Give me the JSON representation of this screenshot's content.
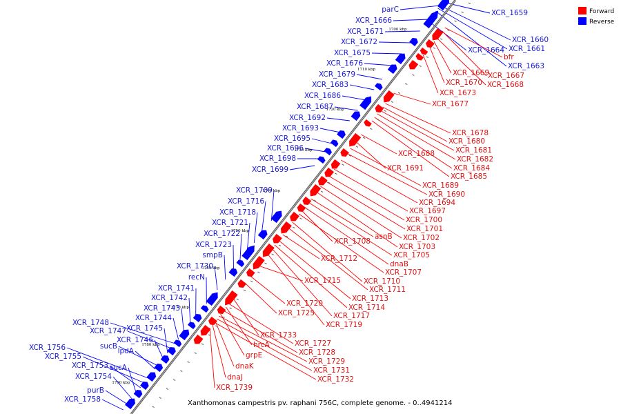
{
  "caption": "Xanthomonas campestris pv. raphani 756C, complete genome. - 0..4941214",
  "legend": {
    "items": [
      {
        "label": "Forward",
        "color": "#ff0000"
      },
      {
        "label": "Reverse",
        "color": "#0000ff"
      }
    ]
  },
  "colors": {
    "forward": "#ff0000",
    "reverse": "#0000ff",
    "backbone": "#555555"
  },
  "ticks": [
    "1700 kbp",
    "1710 kbp",
    "1720 kbp",
    "1730 kbp",
    "1740 kbp",
    "1750 kbp",
    "1760 kbp",
    "1770 kbp",
    "1780 kbp",
    "1790 kbp"
  ],
  "reverse_labels": [
    "XCR_1659",
    "parC",
    "XCR_1666",
    "XCR_1671",
    "XCR_1672",
    "XCR_1675",
    "XCR_1676",
    "XCR_1679",
    "XCR_1683",
    "XCR_1686",
    "XCR_1687",
    "XCR_1692",
    "XCR_1693",
    "XCR_1695",
    "XCR_1696",
    "XCR_1698",
    "XCR_1699",
    "XCR_1709",
    "XCR_1716",
    "XCR_1718",
    "XCR_1721",
    "XCR_1722",
    "XCR_1723",
    "smpB",
    "XCR_1730",
    "recN",
    "XCR_1741",
    "XCR_1742",
    "XCR_1743",
    "XCR_1744",
    "XCR_1748",
    "XCR_1747",
    "XCR_1745",
    "XCR_1746",
    "sucB",
    "lpdA",
    "XCR_1756",
    "XCR_1755",
    "XCR_1753",
    "sucA",
    "XCR_1754",
    "purB",
    "XCR_1758",
    "XCR_1660",
    "XCR_1661",
    "XCR_1664",
    "XCR_1663"
  ],
  "forward_labels": [
    "bfr",
    "XCR_1667",
    "XCR_1669",
    "XCR_1670",
    "XCR_1668",
    "XCR_1673",
    "XCR_1677",
    "XCR_1678",
    "XCR_1680",
    "XCR_1681",
    "XCR_1682",
    "XCR_1684",
    "XCR_1685",
    "XCR_1688",
    "XCR_1691",
    "XCR_1689",
    "XCR_1690",
    "XCR_1694",
    "XCR_1697",
    "XCR_1700",
    "XCR_1701",
    "XCR_1702",
    "XCR_1703",
    "asnB",
    "XCR_1708",
    "XCR_1705",
    "dnaB",
    "XCR_1707",
    "XCR_1712",
    "XCR_1710",
    "XCR_1711",
    "XCR_1715",
    "XCR_1713",
    "XCR_1714",
    "XCR_1720",
    "XCR_1717",
    "XCR_1725",
    "XCR_1719",
    "XCR_1733",
    "XCR_1727",
    "hrcA",
    "XCR_1728",
    "grpE",
    "XCR_1729",
    "dnaK",
    "XCR_1731",
    "dnaJ",
    "XCR_1732",
    "XCR_1739"
  ]
}
